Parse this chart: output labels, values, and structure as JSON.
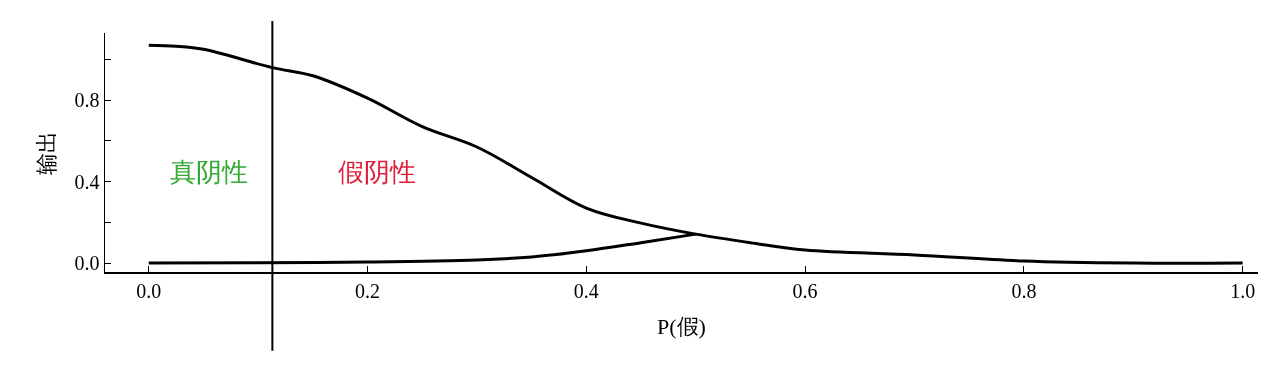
{
  "chart_data": {
    "type": "line",
    "xlabel": "P(假)",
    "ylabel": "输出",
    "xlim": [
      -0.04,
      1.014
    ],
    "ylim": [
      -0.044,
      1.13
    ],
    "xticks": [
      {
        "value": 0,
        "label": "0.0"
      },
      {
        "value": 0.2,
        "label": "0.2"
      },
      {
        "value": 0.4,
        "label": "0.4"
      },
      {
        "value": 0.6,
        "label": "0.6"
      },
      {
        "value": 0.8,
        "label": "0.8"
      },
      {
        "value": 1,
        "label": "1.0"
      }
    ],
    "yticks": [
      {
        "value": 0,
        "label": "0.0"
      },
      {
        "value": 0.2,
        "label": null
      },
      {
        "value": 0.4,
        "label": "0.4"
      },
      {
        "value": 0.6,
        "label": null
      },
      {
        "value": 0.8,
        "label": "0.8"
      },
      {
        "value": 1,
        "label": null
      }
    ],
    "grid": false,
    "marker": "none",
    "line_style": "solid",
    "series": [
      {
        "color": "#000000",
        "x": [
          0,
          0.025,
          0.05,
          0.113,
          0.15,
          0.2,
          0.25,
          0.3,
          0.35,
          0.4,
          0.45,
          0.5,
          0.55,
          0.6,
          0.7,
          0.8,
          0.9,
          1.0
        ],
        "values": [
          1.07,
          1.065,
          1.05,
          0.96,
          0.92,
          0.81,
          0.67,
          0.57,
          0.42,
          0.27,
          0.196,
          0.142,
          0.1,
          0.064,
          0.04,
          0.01,
          0.0,
          0.0
        ]
      },
      {
        "color": "#000000",
        "x": [
          0,
          0.1,
          0.2,
          0.3,
          0.35,
          0.4,
          0.45,
          0.5
        ],
        "values": [
          0.0,
          0.002,
          0.005,
          0.015,
          0.03,
          0.06,
          0.1,
          0.142
        ]
      }
    ],
    "ref_lines": [
      {
        "axis": "x",
        "value": 0.113,
        "color": "#000000"
      }
    ],
    "annotations": [
      "真阴性",
      "假阴性"
    ]
  }
}
